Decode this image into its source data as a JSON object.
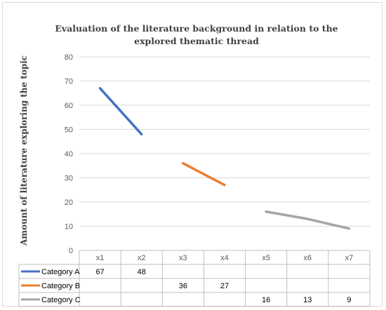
{
  "chart_data": {
    "type": "line",
    "title": "Evaluation of the literature background in relation to the explored thematic thread",
    "ylabel": "Amount of literature exploring the topic",
    "xlabel": "",
    "categories": [
      "x1",
      "x2",
      "x3",
      "x4",
      "x5",
      "x6",
      "x7"
    ],
    "ylim": [
      0,
      80
    ],
    "yticks": [
      0,
      10,
      20,
      30,
      40,
      50,
      60,
      70,
      80
    ],
    "grid": true,
    "legend": "data-table",
    "series": [
      {
        "name": "Category A",
        "color": "#4472c4",
        "values": [
          67,
          48,
          null,
          null,
          null,
          null,
          null
        ]
      },
      {
        "name": "Category B",
        "color": "#ed7d31",
        "values": [
          null,
          null,
          36,
          27,
          null,
          null,
          null
        ]
      },
      {
        "name": "Category C",
        "color": "#a5a5a5",
        "values": [
          null,
          null,
          null,
          null,
          16,
          13,
          9
        ]
      }
    ]
  }
}
